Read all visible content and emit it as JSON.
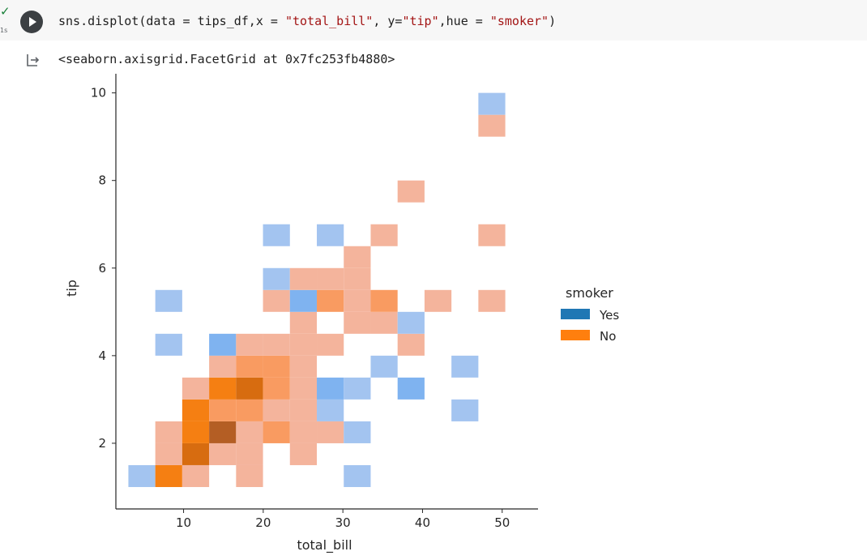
{
  "cell": {
    "exec_mark": "✓",
    "exec_time": "1s",
    "code_tokens": [
      {
        "text": "sns.displot(data = tips_df,x = ",
        "kind": "plain"
      },
      {
        "text": "\"total_bill\"",
        "kind": "str"
      },
      {
        "text": ", y=",
        "kind": "plain"
      },
      {
        "text": "\"tip\"",
        "kind": "str"
      },
      {
        "text": ",hue = ",
        "kind": "plain"
      },
      {
        "text": "\"smoker\"",
        "kind": "str"
      },
      {
        "text": ")",
        "kind": "plain"
      }
    ]
  },
  "output": {
    "repr": "<seaborn.axisgrid.FacetGrid at 0x7fc253fb4880>"
  },
  "colors": {
    "yes": "#1f77b4",
    "no": "#ff7f0e",
    "yes_light": "#a3c4f0",
    "no_light": "#f4b49c",
    "no_mid": "#f99b61",
    "no_strong": "#f57f12",
    "no_dark": "#d76c10",
    "no_darkest": "#b45e24",
    "yes_mid": "#7fb3f0"
  },
  "chart_data": {
    "type": "heatmap",
    "xlabel": "total_bill",
    "ylabel": "tip",
    "xlim": [
      1.5,
      54.5
    ],
    "ylim": [
      0.5,
      10.4
    ],
    "x_ticks": [
      10,
      20,
      30,
      40,
      50
    ],
    "y_ticks": [
      2,
      4,
      6,
      8,
      10
    ],
    "bin_width_x": 3.38,
    "bin_height_y": 0.5,
    "legend": {
      "title": "smoker",
      "entries": [
        {
          "label": "Yes",
          "color": "#1f77b4"
        },
        {
          "label": "No",
          "color": "#ff7f0e"
        }
      ],
      "placement": "right"
    },
    "cells": [
      {
        "x": 3.07,
        "y": 1,
        "color": "#a3c4f0"
      },
      {
        "x": 6.45,
        "y": 1,
        "color": "#f57f12"
      },
      {
        "x": 9.83,
        "y": 1,
        "color": "#f4b49c"
      },
      {
        "x": 16.59,
        "y": 1,
        "color": "#f4b49c"
      },
      {
        "x": 30.11,
        "y": 1,
        "color": "#a3c4f0"
      },
      {
        "x": 6.45,
        "y": 1.5,
        "color": "#f4b49c"
      },
      {
        "x": 9.83,
        "y": 1.5,
        "color": "#d76c10"
      },
      {
        "x": 13.21,
        "y": 1.5,
        "color": "#f4b49c"
      },
      {
        "x": 16.59,
        "y": 1.5,
        "color": "#f4b49c"
      },
      {
        "x": 23.35,
        "y": 1.5,
        "color": "#f4b49c"
      },
      {
        "x": 6.45,
        "y": 2,
        "color": "#f4b49c"
      },
      {
        "x": 9.83,
        "y": 2,
        "color": "#f57f12"
      },
      {
        "x": 13.21,
        "y": 2,
        "color": "#b45e24"
      },
      {
        "x": 16.59,
        "y": 2,
        "color": "#f4b49c"
      },
      {
        "x": 19.97,
        "y": 2,
        "color": "#f99b61"
      },
      {
        "x": 23.35,
        "y": 2,
        "color": "#f4b49c"
      },
      {
        "x": 26.73,
        "y": 2,
        "color": "#f4b49c"
      },
      {
        "x": 30.11,
        "y": 2,
        "color": "#a3c4f0"
      },
      {
        "x": 9.83,
        "y": 2.5,
        "color": "#f57f12"
      },
      {
        "x": 13.21,
        "y": 2.5,
        "color": "#f99b61"
      },
      {
        "x": 16.59,
        "y": 2.5,
        "color": "#f99b61"
      },
      {
        "x": 19.97,
        "y": 2.5,
        "color": "#f4b49c"
      },
      {
        "x": 23.35,
        "y": 2.5,
        "color": "#f4b49c"
      },
      {
        "x": 26.73,
        "y": 2.5,
        "color": "#a3c4f0"
      },
      {
        "x": 43.63,
        "y": 2.5,
        "color": "#a3c4f0"
      },
      {
        "x": 9.83,
        "y": 3,
        "color": "#f4b49c"
      },
      {
        "x": 13.21,
        "y": 3,
        "color": "#f57f12"
      },
      {
        "x": 16.59,
        "y": 3,
        "color": "#d76c10"
      },
      {
        "x": 19.97,
        "y": 3,
        "color": "#f99b61"
      },
      {
        "x": 23.35,
        "y": 3,
        "color": "#f4b49c"
      },
      {
        "x": 26.73,
        "y": 3,
        "color": "#7fb3f0"
      },
      {
        "x": 30.11,
        "y": 3,
        "color": "#a3c4f0"
      },
      {
        "x": 36.87,
        "y": 3,
        "color": "#7fb3f0"
      },
      {
        "x": 13.21,
        "y": 3.5,
        "color": "#f4b49c"
      },
      {
        "x": 16.59,
        "y": 3.5,
        "color": "#f99b61"
      },
      {
        "x": 19.97,
        "y": 3.5,
        "color": "#f99b61"
      },
      {
        "x": 23.35,
        "y": 3.5,
        "color": "#f4b49c"
      },
      {
        "x": 33.49,
        "y": 3.5,
        "color": "#a3c4f0"
      },
      {
        "x": 43.63,
        "y": 3.5,
        "color": "#a3c4f0"
      },
      {
        "x": 6.45,
        "y": 4,
        "color": "#a3c4f0"
      },
      {
        "x": 13.21,
        "y": 4,
        "color": "#7fb3f0"
      },
      {
        "x": 16.59,
        "y": 4,
        "color": "#f4b49c"
      },
      {
        "x": 19.97,
        "y": 4,
        "color": "#f4b49c"
      },
      {
        "x": 23.35,
        "y": 4,
        "color": "#f4b49c"
      },
      {
        "x": 26.73,
        "y": 4,
        "color": "#f4b49c"
      },
      {
        "x": 36.87,
        "y": 4,
        "color": "#f4b49c"
      },
      {
        "x": 23.35,
        "y": 4.5,
        "color": "#f4b49c"
      },
      {
        "x": 30.11,
        "y": 4.5,
        "color": "#f4b49c"
      },
      {
        "x": 33.49,
        "y": 4.5,
        "color": "#f4b49c"
      },
      {
        "x": 36.87,
        "y": 4.5,
        "color": "#a3c4f0"
      },
      {
        "x": 6.45,
        "y": 5,
        "color": "#a3c4f0"
      },
      {
        "x": 19.97,
        "y": 5,
        "color": "#f4b49c"
      },
      {
        "x": 23.35,
        "y": 5,
        "color": "#7fb3f0"
      },
      {
        "x": 26.73,
        "y": 5,
        "color": "#f99b61"
      },
      {
        "x": 30.11,
        "y": 5,
        "color": "#f4b49c"
      },
      {
        "x": 33.49,
        "y": 5,
        "color": "#f99b61"
      },
      {
        "x": 40.25,
        "y": 5,
        "color": "#f4b49c"
      },
      {
        "x": 47.01,
        "y": 5,
        "color": "#f4b49c"
      },
      {
        "x": 19.97,
        "y": 5.5,
        "color": "#a3c4f0"
      },
      {
        "x": 23.35,
        "y": 5.5,
        "color": "#f4b49c"
      },
      {
        "x": 26.73,
        "y": 5.5,
        "color": "#f4b49c"
      },
      {
        "x": 30.11,
        "y": 5.5,
        "color": "#f4b49c"
      },
      {
        "x": 30.11,
        "y": 6,
        "color": "#f4b49c"
      },
      {
        "x": 19.97,
        "y": 6.5,
        "color": "#a3c4f0"
      },
      {
        "x": 26.73,
        "y": 6.5,
        "color": "#a3c4f0"
      },
      {
        "x": 33.49,
        "y": 6.5,
        "color": "#f4b49c"
      },
      {
        "x": 47.01,
        "y": 6.5,
        "color": "#f4b49c"
      },
      {
        "x": 36.87,
        "y": 7.5,
        "color": "#f4b49c"
      },
      {
        "x": 47.01,
        "y": 9,
        "color": "#f4b49c"
      },
      {
        "x": 47.01,
        "y": 9.5,
        "color": "#a3c4f0"
      }
    ]
  }
}
